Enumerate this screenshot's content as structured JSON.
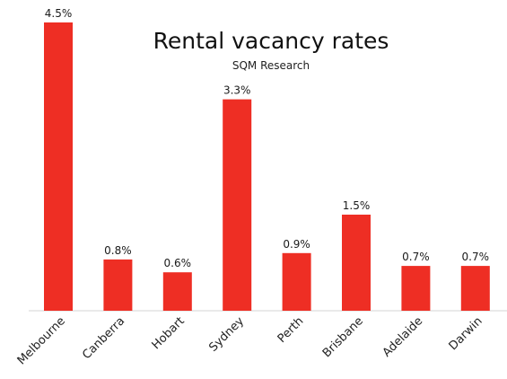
{
  "chart_data": {
    "type": "bar",
    "title": "Rental vacancy rates",
    "subtitle": "SQM Research",
    "categories": [
      "Melbourne",
      "Canberra",
      "Hobart",
      "Sydney",
      "Perth",
      "Brisbane",
      "Adelaide",
      "Darwin"
    ],
    "values": [
      4.5,
      0.8,
      0.6,
      3.3,
      0.9,
      1.5,
      0.7,
      0.7
    ],
    "data_labels": [
      "4.5%",
      "0.8%",
      "0.6%",
      "3.3%",
      "0.9%",
      "1.5%",
      "0.7%",
      "0.7%"
    ],
    "xlabel": "",
    "ylabel": "",
    "ylim": [
      0,
      4.5
    ],
    "grid": false,
    "legend": "none",
    "bar_color": "#ee2e24"
  }
}
